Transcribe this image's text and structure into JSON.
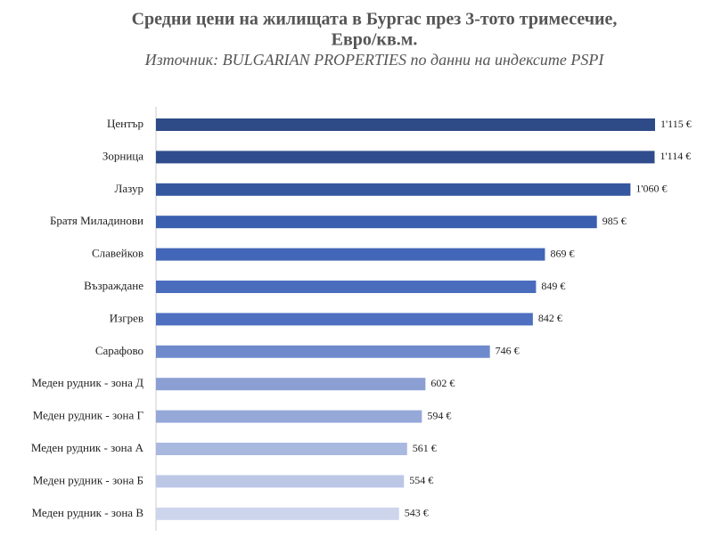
{
  "chart_data": {
    "type": "barh",
    "title": [
      "Средни цени на жилищата в Бургас през 3-тото тримесечие,",
      "Евро/кв.м."
    ],
    "subtitle": "Източник: BULGARIAN PROPERTIES по данни на индексите PSPI",
    "categories": [
      "Център",
      "Зорница",
      "Лазур",
      "Братя Миладинови",
      "Славейков",
      "Възраждане",
      "Изгрев",
      "Сарафово",
      "Меден рудник - зона Д",
      "Меден рудник - зона Г",
      "Меден рудник - зона А",
      "Меден рудник - зона Б",
      "Меден рудник - зона В"
    ],
    "values": [
      1115,
      1114,
      1060,
      985,
      869,
      849,
      842,
      746,
      602,
      594,
      561,
      554,
      543
    ],
    "value_labels": [
      "1'115 €",
      "1'114 €",
      "1'060 €",
      "985 €",
      "869 €",
      "849 €",
      "842 €",
      "746 €",
      "602 €",
      "594 €",
      "561 €",
      "554 €",
      "543 €"
    ],
    "colors": [
      "#2e4a87",
      "#2f4d8c",
      "#3457a0",
      "#3a5fae",
      "#4266b8",
      "#4a6cbd",
      "#4f70c0",
      "#6f8acc",
      "#8b9fd3",
      "#95a8d8",
      "#a9b8df",
      "#bcc7e6",
      "#cdd5ec"
    ]
  }
}
